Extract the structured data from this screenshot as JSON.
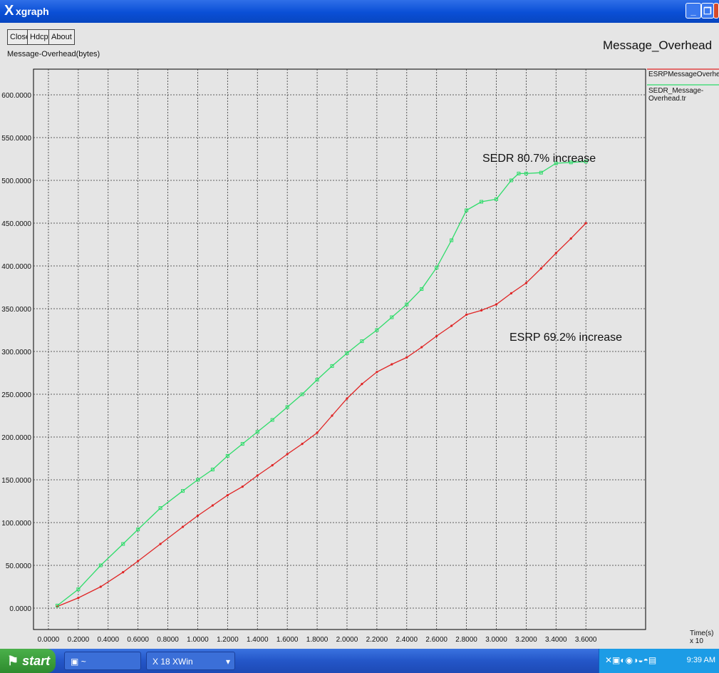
{
  "window": {
    "title": "xgraph",
    "app_icon": "x-logo-icon"
  },
  "toolbar": {
    "close_label": "Close",
    "hdcpy_label": "Hdcpy",
    "about_label": "About"
  },
  "plot_title": "Message_Overhead",
  "y_axis_label": "Message-Overhead(bytes)",
  "x_axis_unit": "Time(s) x 10",
  "legend": [
    {
      "label": "ESRPMessageOverheads'.tr",
      "color": "#e02424"
    },
    {
      "label": "SEDR_Message-Overhead.tr",
      "color": "#2edc6a"
    }
  ],
  "annotations": {
    "sedr": "SEDR 80.7% increase",
    "esrp": "ESRP 69.2% increase"
  },
  "chart_data": {
    "type": "line",
    "xlim": [
      -0.1,
      4.0
    ],
    "ylim": [
      -25,
      630
    ],
    "grid": true,
    "x_ticks": [
      "0.0000",
      "0.2000",
      "0.4000",
      "0.6000",
      "0.8000",
      "1.0000",
      "1.2000",
      "1.4000",
      "1.6000",
      "1.8000",
      "2.0000",
      "2.2000",
      "2.4000",
      "2.6000",
      "2.8000",
      "3.0000",
      "3.2000",
      "3.4000",
      "3.6000"
    ],
    "y_ticks": [
      "0.0000",
      "50.0000",
      "100.0000",
      "150.0000",
      "200.0000",
      "250.0000",
      "300.0000",
      "350.0000",
      "400.0000",
      "450.0000",
      "500.0000",
      "550.0000",
      "600.0000"
    ],
    "series": [
      {
        "name": "ESRPMessageOverheads'.tr",
        "color": "#e02424",
        "points": [
          [
            0.06,
            2
          ],
          [
            0.2,
            12
          ],
          [
            0.35,
            25
          ],
          [
            0.5,
            42
          ],
          [
            0.6,
            55
          ],
          [
            0.75,
            75
          ],
          [
            0.9,
            95
          ],
          [
            1.0,
            108
          ],
          [
            1.1,
            120
          ],
          [
            1.2,
            132
          ],
          [
            1.3,
            142
          ],
          [
            1.4,
            155
          ],
          [
            1.5,
            167
          ],
          [
            1.6,
            180
          ],
          [
            1.7,
            192
          ],
          [
            1.8,
            205
          ],
          [
            1.9,
            225
          ],
          [
            2.0,
            245
          ],
          [
            2.1,
            262
          ],
          [
            2.2,
            276
          ],
          [
            2.3,
            285
          ],
          [
            2.4,
            293
          ],
          [
            2.5,
            305
          ],
          [
            2.6,
            318
          ],
          [
            2.7,
            330
          ],
          [
            2.8,
            343
          ],
          [
            2.9,
            348
          ],
          [
            3.0,
            355
          ],
          [
            3.1,
            368
          ],
          [
            3.2,
            380
          ],
          [
            3.3,
            397
          ],
          [
            3.4,
            415
          ],
          [
            3.5,
            432
          ],
          [
            3.6,
            450
          ]
        ]
      },
      {
        "name": "SEDR_Message-Overhead.tr",
        "color": "#2edc6a",
        "points": [
          [
            0.06,
            3
          ],
          [
            0.2,
            22
          ],
          [
            0.35,
            50
          ],
          [
            0.5,
            75
          ],
          [
            0.6,
            92
          ],
          [
            0.75,
            117
          ],
          [
            0.9,
            137
          ],
          [
            1.0,
            150
          ],
          [
            1.1,
            162
          ],
          [
            1.2,
            178
          ],
          [
            1.3,
            192
          ],
          [
            1.4,
            206
          ],
          [
            1.5,
            220
          ],
          [
            1.6,
            235
          ],
          [
            1.7,
            250
          ],
          [
            1.8,
            267
          ],
          [
            1.9,
            283
          ],
          [
            2.0,
            298
          ],
          [
            2.1,
            312
          ],
          [
            2.2,
            325
          ],
          [
            2.3,
            340
          ],
          [
            2.4,
            355
          ],
          [
            2.5,
            373
          ],
          [
            2.6,
            398
          ],
          [
            2.7,
            430
          ],
          [
            2.8,
            465
          ],
          [
            2.9,
            475
          ],
          [
            3.0,
            478
          ],
          [
            3.1,
            500
          ],
          [
            3.15,
            508
          ],
          [
            3.2,
            508
          ],
          [
            3.3,
            509
          ],
          [
            3.4,
            520
          ],
          [
            3.5,
            521
          ],
          [
            3.6,
            522
          ]
        ]
      }
    ]
  },
  "taskbar": {
    "start_label": "start",
    "task1_label": "~",
    "task2_label": "18 XWin",
    "clock": "9:39 AM"
  }
}
